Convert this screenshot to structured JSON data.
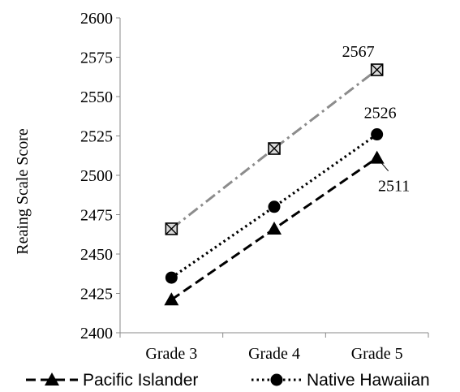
{
  "chart_data": {
    "type": "line",
    "title": "",
    "xlabel": "",
    "ylabel": "Reaing Scale Score",
    "categories": [
      "Grade 3",
      "Grade 4",
      "Grade 5"
    ],
    "ylim": [
      2400,
      2600
    ],
    "yticks": [
      2400,
      2425,
      2450,
      2475,
      2500,
      2525,
      2550,
      2575,
      2600
    ],
    "grid": false,
    "legend_position": "bottom",
    "series": [
      {
        "name": "Pacific Islander",
        "values": [
          2421,
          2466,
          2511
        ],
        "color": "#000000",
        "marker": "triangle",
        "dash": "dashed"
      },
      {
        "name": "Native Hawaiian",
        "values": [
          2435,
          2480,
          2526
        ],
        "color": "#000000",
        "marker": "circle",
        "dash": "dotted"
      },
      {
        "values": [
          2466,
          2517,
          2567
        ],
        "color": "#8c8c8c",
        "marker": "square-x",
        "dash": "dashdot"
      }
    ],
    "annotations": [
      {
        "text": "2567",
        "series": 2,
        "index": 2
      },
      {
        "text": "2526",
        "series": 1,
        "index": 2
      },
      {
        "text": "2511",
        "series": 0,
        "index": 2
      }
    ]
  }
}
